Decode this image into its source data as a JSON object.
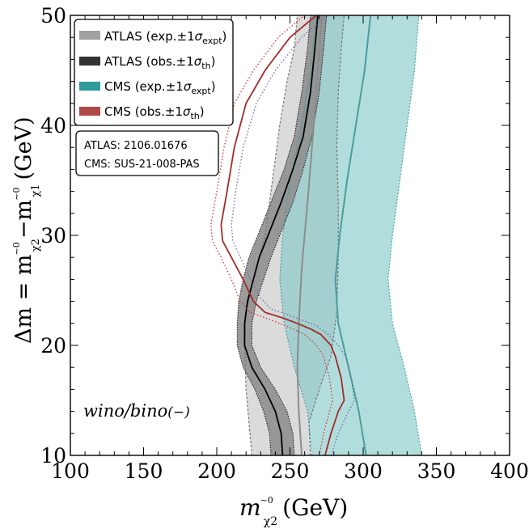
{
  "chart_data": {
    "type": "area",
    "xlabel": {
      "main": "m",
      "accent": "~0",
      "sub": "χ2",
      "unit": "(GeV)"
    },
    "ylabel": {
      "prefix": "Δm = m",
      "accent1": "~0",
      "sub1": "χ2",
      "minus": "−m",
      "accent2": "~0",
      "sub2": "χ1",
      "unit": "(GeV)"
    },
    "xlim": [
      100,
      400
    ],
    "ylim": [
      10,
      50
    ],
    "xticks": [
      100,
      150,
      200,
      250,
      300,
      350,
      400
    ],
    "yticks": [
      10,
      20,
      30,
      40,
      50
    ],
    "grid": false,
    "legend_position": "top-left",
    "legend": [
      {
        "key": "atlas-exp",
        "label": "ATLAS (exp.±1",
        "sigma": "σ",
        "sub": "expt",
        "close": ")",
        "color": "#a0a0a0"
      },
      {
        "key": "atlas-obs",
        "label": "ATLAS (obs.±1",
        "sigma": "σ",
        "sub": "th",
        "close": ")",
        "color": "#333333"
      },
      {
        "key": "cms-exp",
        "label": "CMS (exp.±1",
        "sigma": "σ",
        "sub": "expt",
        "close": ")",
        "color": "#2e9a9a"
      },
      {
        "key": "cms-obs",
        "label": "CMS (obs.±1",
        "sigma": "σ",
        "sub": "th",
        "close": ")",
        "color": "#b04a48"
      }
    ],
    "references": [
      "ATLAS: 2106.01676",
      "CMS: SUS-21-008-PAS"
    ],
    "annotation": {
      "text": "wino/bino",
      "suffix": "(−)"
    },
    "colors": {
      "atlas_exp_band": "#d9d9d9",
      "atlas_exp_edge": "#777777",
      "atlas_exp_line": "#8c8c8c",
      "atlas_obs_band": "#8f8f8f",
      "atlas_obs_line": "#000000",
      "cms_exp_band": "#7fc6c6",
      "cms_exp_edge": "#3f9a9a",
      "cms_exp_line": "#4a9e9e",
      "cms_obs_line": "#a32a28",
      "cms_obs_dotted_red": "#d0343a",
      "cms_obs_dotted_blue": "#6a6ab0"
    },
    "series": [
      {
        "name": "ATLAS exp. lower",
        "points": [
          [
            224,
            10
          ],
          [
            222,
            13
          ],
          [
            220,
            16
          ],
          [
            219,
            20
          ],
          [
            220,
            23
          ],
          [
            225,
            26
          ],
          [
            233,
            30
          ],
          [
            238,
            35
          ],
          [
            243,
            40
          ],
          [
            248,
            44
          ],
          [
            253,
            47
          ],
          [
            255,
            50
          ]
        ]
      },
      {
        "name": "ATLAS exp. central",
        "points": [
          [
            258,
            10
          ],
          [
            256,
            14
          ],
          [
            255,
            18
          ],
          [
            256,
            22
          ],
          [
            258,
            27
          ],
          [
            262,
            33
          ],
          [
            265,
            38
          ],
          [
            268,
            43
          ],
          [
            270,
            47
          ],
          [
            272,
            50
          ]
        ]
      },
      {
        "name": "ATLAS exp. upper",
        "points": [
          [
            264,
            10
          ],
          [
            263,
            13
          ],
          [
            270,
            16
          ],
          [
            278,
            19
          ],
          [
            282,
            23
          ],
          [
            283,
            28
          ],
          [
            283,
            33
          ],
          [
            282,
            38
          ],
          [
            283,
            43
          ],
          [
            285,
            47
          ],
          [
            287,
            50
          ]
        ]
      },
      {
        "name": "ATLAS obs. lower",
        "points": [
          [
            237,
            10
          ],
          [
            236,
            12
          ],
          [
            232,
            14
          ],
          [
            226,
            16
          ],
          [
            218,
            18
          ],
          [
            214,
            20
          ],
          [
            214,
            22
          ],
          [
            215,
            24
          ],
          [
            218,
            26
          ],
          [
            222,
            28
          ],
          [
            228,
            30
          ],
          [
            237,
            33
          ],
          [
            246,
            36
          ],
          [
            253,
            39
          ],
          [
            258,
            43
          ],
          [
            262,
            47
          ],
          [
            264,
            50
          ]
        ]
      },
      {
        "name": "ATLAS obs. central",
        "points": [
          [
            245,
            10
          ],
          [
            244,
            12
          ],
          [
            240,
            14
          ],
          [
            233,
            16
          ],
          [
            224,
            18
          ],
          [
            219,
            20
          ],
          [
            219,
            22
          ],
          [
            221,
            24
          ],
          [
            225,
            26
          ],
          [
            229,
            28
          ],
          [
            235,
            30
          ],
          [
            244,
            33
          ],
          [
            252,
            36
          ],
          [
            259,
            39
          ],
          [
            264,
            43
          ],
          [
            267,
            47
          ],
          [
            269,
            50
          ]
        ]
      },
      {
        "name": "ATLAS obs. upper",
        "points": [
          [
            253,
            10
          ],
          [
            252,
            12
          ],
          [
            248,
            14
          ],
          [
            240,
            16
          ],
          [
            230,
            18
          ],
          [
            224,
            20
          ],
          [
            224,
            22
          ],
          [
            227,
            24
          ],
          [
            232,
            26
          ],
          [
            237,
            28
          ],
          [
            243,
            30
          ],
          [
            252,
            33
          ],
          [
            259,
            36
          ],
          [
            265,
            39
          ],
          [
            270,
            43
          ],
          [
            273,
            47
          ],
          [
            275,
            50
          ]
        ]
      },
      {
        "name": "CMS exp. lower",
        "points": [
          [
            265,
            10
          ],
          [
            262,
            14
          ],
          [
            253,
            18
          ],
          [
            246,
            22
          ],
          [
            243,
            26
          ],
          [
            245,
            30
          ],
          [
            250,
            35
          ],
          [
            258,
            40
          ],
          [
            264,
            45
          ],
          [
            268,
            50
          ]
        ]
      },
      {
        "name": "CMS exp. central",
        "points": [
          [
            302,
            10
          ],
          [
            297,
            14
          ],
          [
            290,
            18
          ],
          [
            283,
            22
          ],
          [
            281,
            26
          ],
          [
            284,
            30
          ],
          [
            289,
            35
          ],
          [
            295,
            40
          ],
          [
            301,
            45
          ],
          [
            305,
            50
          ]
        ]
      },
      {
        "name": "CMS exp. upper",
        "points": [
          [
            340,
            10
          ],
          [
            335,
            14
          ],
          [
            328,
            18
          ],
          [
            320,
            22
          ],
          [
            317,
            26
          ],
          [
            320,
            30
          ],
          [
            325,
            35
          ],
          [
            330,
            40
          ],
          [
            335,
            45
          ],
          [
            338,
            50
          ]
        ]
      },
      {
        "name": "CMS obs. central",
        "points": [
          [
            274,
            10
          ],
          [
            278,
            12
          ],
          [
            283,
            14
          ],
          [
            287,
            15
          ],
          [
            285,
            17
          ],
          [
            281,
            19
          ],
          [
            278,
            20
          ],
          [
            271,
            21
          ],
          [
            264,
            21.5
          ],
          [
            255,
            22
          ],
          [
            245,
            22.5
          ],
          [
            233,
            23
          ],
          [
            225,
            24
          ],
          [
            218,
            26
          ],
          [
            210,
            28
          ],
          [
            204,
            29.5
          ],
          [
            203,
            31
          ],
          [
            207,
            34
          ],
          [
            212,
            38
          ],
          [
            220,
            42
          ],
          [
            233,
            45
          ],
          [
            250,
            48
          ],
          [
            268,
            50
          ]
        ]
      },
      {
        "name": "CMS obs. upper (dotted)",
        "points": [
          [
            278,
            10
          ],
          [
            283,
            12
          ],
          [
            290,
            14
          ],
          [
            294,
            15
          ],
          [
            292,
            17
          ],
          [
            288,
            19
          ],
          [
            283,
            20
          ],
          [
            276,
            21
          ],
          [
            268,
            21.8
          ],
          [
            258,
            22.3
          ],
          [
            248,
            22.8
          ],
          [
            237,
            23.3
          ],
          [
            230,
            24.3
          ],
          [
            223,
            26
          ],
          [
            216,
            28
          ],
          [
            211,
            29.5
          ],
          [
            210,
            31
          ],
          [
            213,
            34
          ],
          [
            218,
            38
          ],
          [
            227,
            42
          ],
          [
            240,
            45
          ],
          [
            258,
            48
          ],
          [
            275,
            50
          ]
        ]
      },
      {
        "name": "CMS obs. lower (dotted)",
        "points": [
          [
            270,
            10
          ],
          [
            273,
            12
          ],
          [
            277,
            14
          ],
          [
            279,
            15
          ],
          [
            277,
            17
          ],
          [
            273,
            19
          ],
          [
            268,
            20
          ],
          [
            260,
            21
          ],
          [
            252,
            21.5
          ],
          [
            243,
            22
          ],
          [
            233,
            22.5
          ],
          [
            223,
            23
          ],
          [
            216,
            24
          ],
          [
            210,
            26
          ],
          [
            203,
            28
          ],
          [
            197,
            29.5
          ],
          [
            196,
            31
          ],
          [
            200,
            34
          ],
          [
            205,
            38
          ],
          [
            212,
            42
          ],
          [
            225,
            45
          ],
          [
            242,
            48
          ],
          [
            260,
            50
          ]
        ]
      }
    ]
  }
}
